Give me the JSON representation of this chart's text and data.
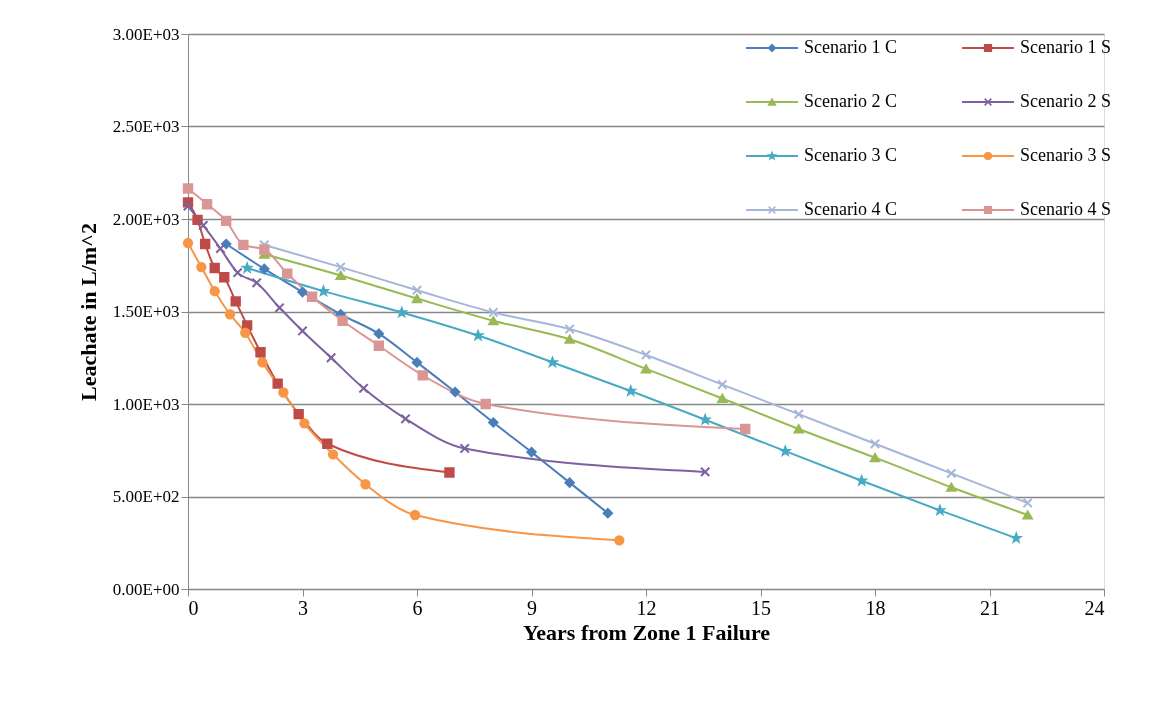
{
  "chart_data": {
    "type": "line",
    "xlabel": "Years from Zone 1 Failure",
    "ylabel": "Leachate in L/m^2",
    "xlim": [
      0,
      24
    ],
    "xticks": [
      0,
      3,
      6,
      9,
      12,
      15,
      18,
      21,
      24
    ],
    "ylim": [
      0,
      3000
    ],
    "yticks": [
      {
        "value": 0,
        "label": "0.00E+00"
      },
      {
        "value": 500,
        "label": "5.00E+02"
      },
      {
        "value": 1000,
        "label": "1.00E+03"
      },
      {
        "value": 1500,
        "label": "1.50E+03"
      },
      {
        "value": 2000,
        "label": "2.00E+03"
      },
      {
        "value": 2500,
        "label": "2.50E+03"
      },
      {
        "value": 3000,
        "label": "3.00E+03"
      }
    ],
    "grid": "y",
    "legend": "top right",
    "series": [
      {
        "name": "Scenario 1 C",
        "color": "#4a7ebb",
        "marker": "diamond",
        "x": [
          1,
          2,
          3,
          4,
          5,
          6,
          7,
          8,
          9,
          10,
          11
        ],
        "values": [
          1865,
          1730,
          1605,
          1485,
          1380,
          1225,
          1065,
          900,
          740,
          575,
          410
        ]
      },
      {
        "name": "Scenario 1 S",
        "color": "#be4b48",
        "marker": "square",
        "x": [
          0,
          0.25,
          0.45,
          0.7,
          0.95,
          1.25,
          1.55,
          1.9,
          2.35,
          2.9,
          3.65,
          6.85
        ],
        "values": [
          2090,
          1995,
          1865,
          1735,
          1685,
          1555,
          1425,
          1280,
          1110,
          945,
          785,
          630
        ]
      },
      {
        "name": "Scenario 2 C",
        "color": "#98b954",
        "marker": "triangle",
        "x": [
          2,
          4,
          6,
          8,
          10,
          12,
          14,
          16,
          18,
          20,
          22
        ],
        "values": [
          1810,
          1695,
          1570,
          1450,
          1350,
          1190,
          1030,
          865,
          710,
          550,
          400
        ]
      },
      {
        "name": "Scenario 2 S",
        "color": "#7d60a0",
        "marker": "cross",
        "x": [
          0,
          0.4,
          0.85,
          1.3,
          1.8,
          2.4,
          3,
          3.75,
          4.6,
          5.7,
          7.25,
          13.55
        ],
        "values": [
          2070,
          1965,
          1840,
          1710,
          1655,
          1520,
          1395,
          1250,
          1085,
          920,
          760,
          633
        ]
      },
      {
        "name": "Scenario 3 C",
        "color": "#46aac5",
        "marker": "star",
        "x": [
          1.55,
          3.55,
          5.6,
          7.6,
          9.55,
          11.6,
          13.55,
          15.65,
          17.65,
          19.7,
          21.7
        ],
        "values": [
          1735,
          1610,
          1495,
          1370,
          1225,
          1070,
          915,
          745,
          585,
          425,
          275
        ]
      },
      {
        "name": "Scenario 3 S",
        "color": "#f79646",
        "marker": "circle",
        "x": [
          0,
          0.35,
          0.7,
          1.1,
          1.5,
          1.95,
          2.5,
          3.05,
          3.8,
          4.65,
          5.95,
          11.3
        ],
        "values": [
          1870,
          1740,
          1610,
          1485,
          1385,
          1225,
          1062,
          895,
          728,
          566,
          400,
          263
        ]
      },
      {
        "name": "Scenario 4 C",
        "color": "#a5b6d9",
        "marker": "cross",
        "x": [
          2,
          4,
          6,
          8,
          10,
          12,
          14,
          16,
          18,
          20,
          22
        ],
        "values": [
          1860,
          1740,
          1615,
          1495,
          1405,
          1265,
          1105,
          945,
          785,
          625,
          465
        ]
      },
      {
        "name": "Scenario 4 S",
        "color": "#d99694",
        "marker": "square",
        "x": [
          0,
          0.5,
          1,
          1.45,
          2,
          2.6,
          3.25,
          4.05,
          5,
          6.15,
          7.8,
          14.6
        ],
        "values": [
          2165,
          2080,
          1990,
          1860,
          1835,
          1705,
          1580,
          1450,
          1315,
          1155,
          1000,
          865
        ]
      }
    ]
  }
}
